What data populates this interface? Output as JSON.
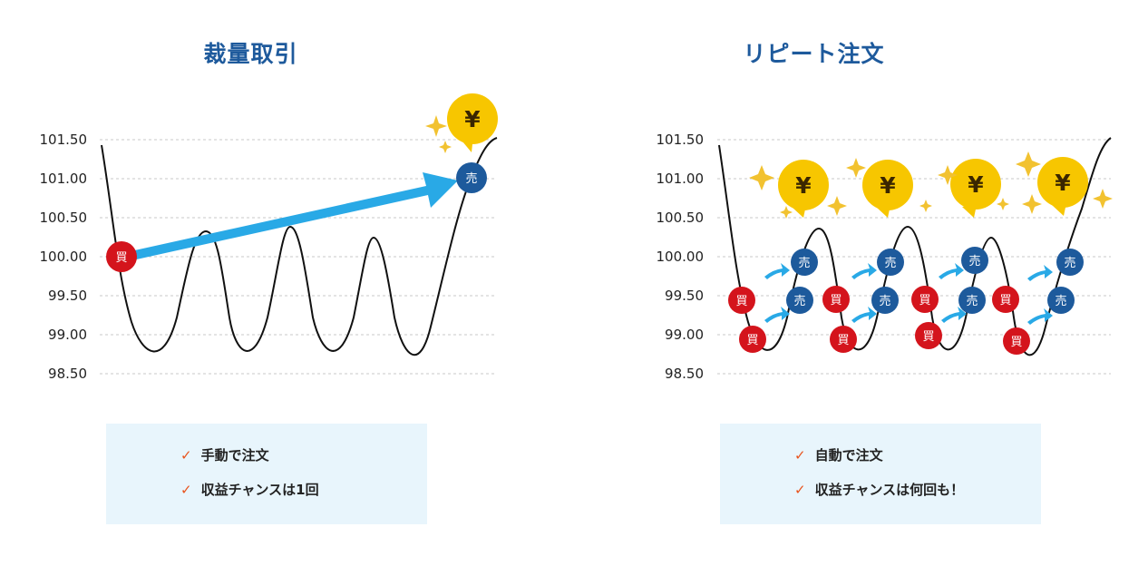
{
  "panels": [
    {
      "title": "裁量取引",
      "y_ticks": [
        "101.50",
        "101.00",
        "100.50",
        "100.00",
        "99.50",
        "99.00",
        "98.50"
      ],
      "buy_label": "買",
      "sell_label": "売",
      "profit_symbol": "¥",
      "features": [
        "手動で注文",
        "収益チャンスは1回"
      ]
    },
    {
      "title": "リピート注文",
      "y_ticks": [
        "101.50",
        "101.00",
        "100.50",
        "100.00",
        "99.50",
        "99.00",
        "98.50"
      ],
      "buy_label": "買",
      "sell_label": "売",
      "profit_symbol": "¥",
      "features": [
        "自動で注文",
        "収益チャンスは何回も！"
      ]
    }
  ],
  "check_mark": "✓",
  "colors": {
    "title": "#1e5a9c",
    "buy_badge": "#d4141c",
    "sell_badge": "#1d5a9c",
    "arrow": "#29a9e6",
    "coin": "#f7c600",
    "sparkle": "#f2c230",
    "check": "#e8541e",
    "info_bg": "#e8f5fc",
    "grid": "#c8c8c8"
  }
}
